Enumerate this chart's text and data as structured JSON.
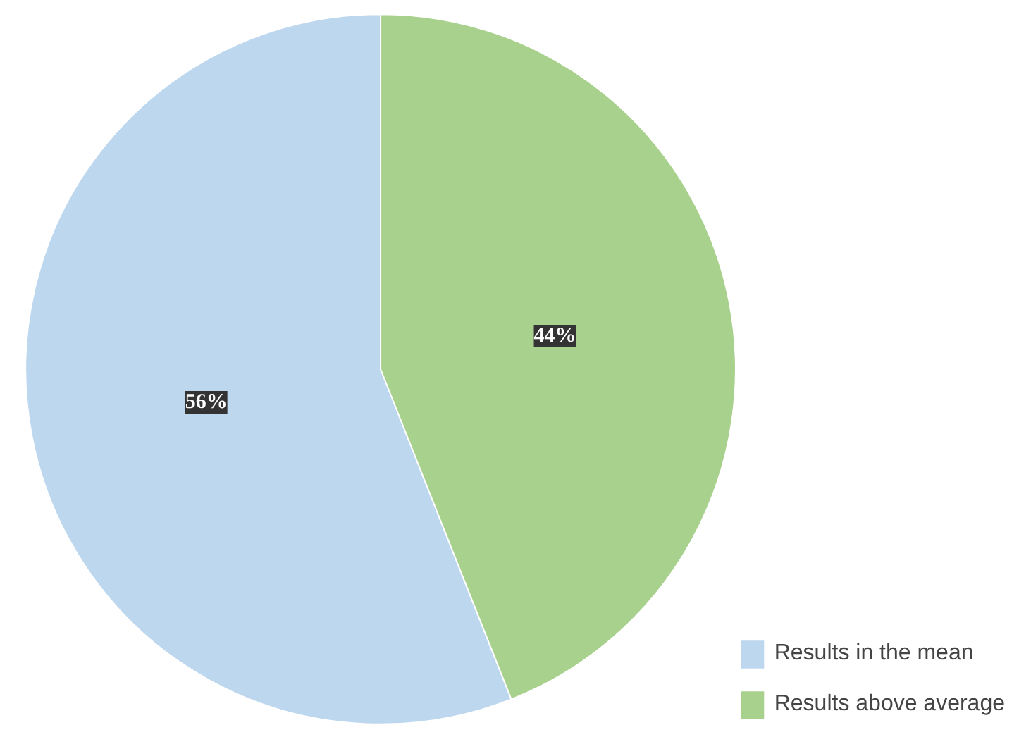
{
  "chart_data": {
    "type": "pie",
    "categories": [
      "Results in the mean",
      "Results above average"
    ],
    "values": [
      56,
      44
    ],
    "colors": [
      "#bdd7ee",
      "#a9d18e"
    ],
    "value_labels": [
      "56%",
      "44%"
    ],
    "legend": "bottom right"
  }
}
